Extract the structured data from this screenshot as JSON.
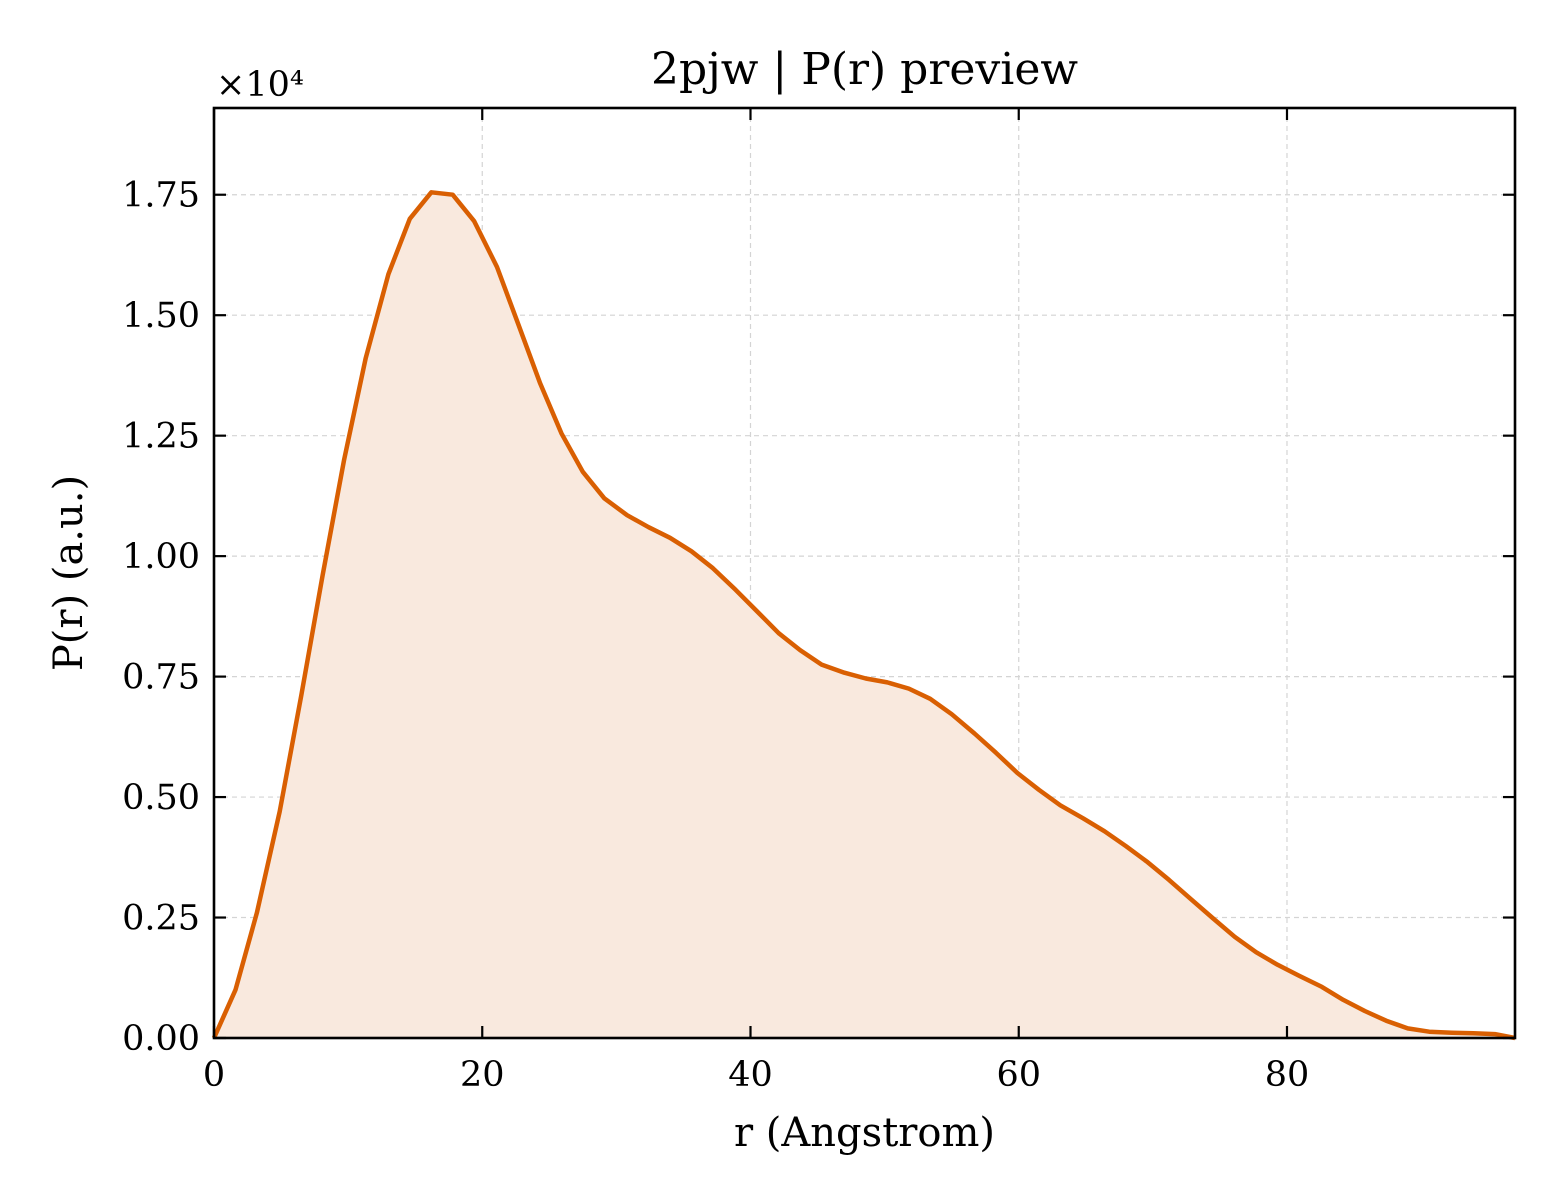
{
  "chart_data": {
    "type": "area",
    "title": "2pjw | P(r) preview",
    "xlabel": "r (Angstrom)",
    "ylabel": "P(r) (a.u.)",
    "y_multiplier_label": "×10⁴",
    "y_multiplier": 10000,
    "xlim": [
      0,
      97
    ],
    "ylim": [
      0,
      19300
    ],
    "x_ticks": [
      0,
      20,
      40,
      60,
      80
    ],
    "y_ticks": [
      0,
      2500,
      5000,
      7500,
      10000,
      12500,
      15000,
      17500
    ],
    "y_tick_labels": [
      "0.00",
      "0.25",
      "0.50",
      "0.75",
      "1.00",
      "1.25",
      "1.50",
      "1.75"
    ],
    "grid": true,
    "line_color": "#d95f02",
    "fill_color": "#f9e9de",
    "series": [
      {
        "x": [
          0,
          1.6,
          3.2,
          4.9,
          6.5,
          8.1,
          9.7,
          11.3,
          13.0,
          14.6,
          16.2,
          17.8,
          19.4,
          21.1,
          22.7,
          24.3,
          25.9,
          27.5,
          29.1,
          30.8,
          32.4,
          34.0,
          35.6,
          37.2,
          38.9,
          40.5,
          42.1,
          43.7,
          45.3,
          47.0,
          48.6,
          50.2,
          51.8,
          53.4,
          55.0,
          56.7,
          58.3,
          59.9,
          61.5,
          63.1,
          64.8,
          66.4,
          68.0,
          69.6,
          71.2,
          72.8,
          74.5,
          76.1,
          77.7,
          79.3,
          80.9,
          82.6,
          84.2,
          85.8,
          87.4,
          89.0,
          90.6,
          92.3,
          93.9,
          95.5,
          97.0
        ],
        "y": [
          0,
          1000,
          2600,
          4700,
          7100,
          9600,
          12000,
          14100,
          15850,
          17000,
          17550,
          17500,
          16950,
          16000,
          14800,
          13600,
          12550,
          11750,
          11200,
          10850,
          10600,
          10380,
          10100,
          9750,
          9300,
          8850,
          8400,
          8050,
          7750,
          7580,
          7460,
          7380,
          7250,
          7040,
          6720,
          6320,
          5920,
          5500,
          5150,
          4830,
          4560,
          4290,
          3980,
          3650,
          3280,
          2890,
          2480,
          2100,
          1780,
          1520,
          1290,
          1060,
          790,
          560,
          360,
          200,
          130,
          110,
          100,
          80,
          0
        ]
      }
    ]
  }
}
